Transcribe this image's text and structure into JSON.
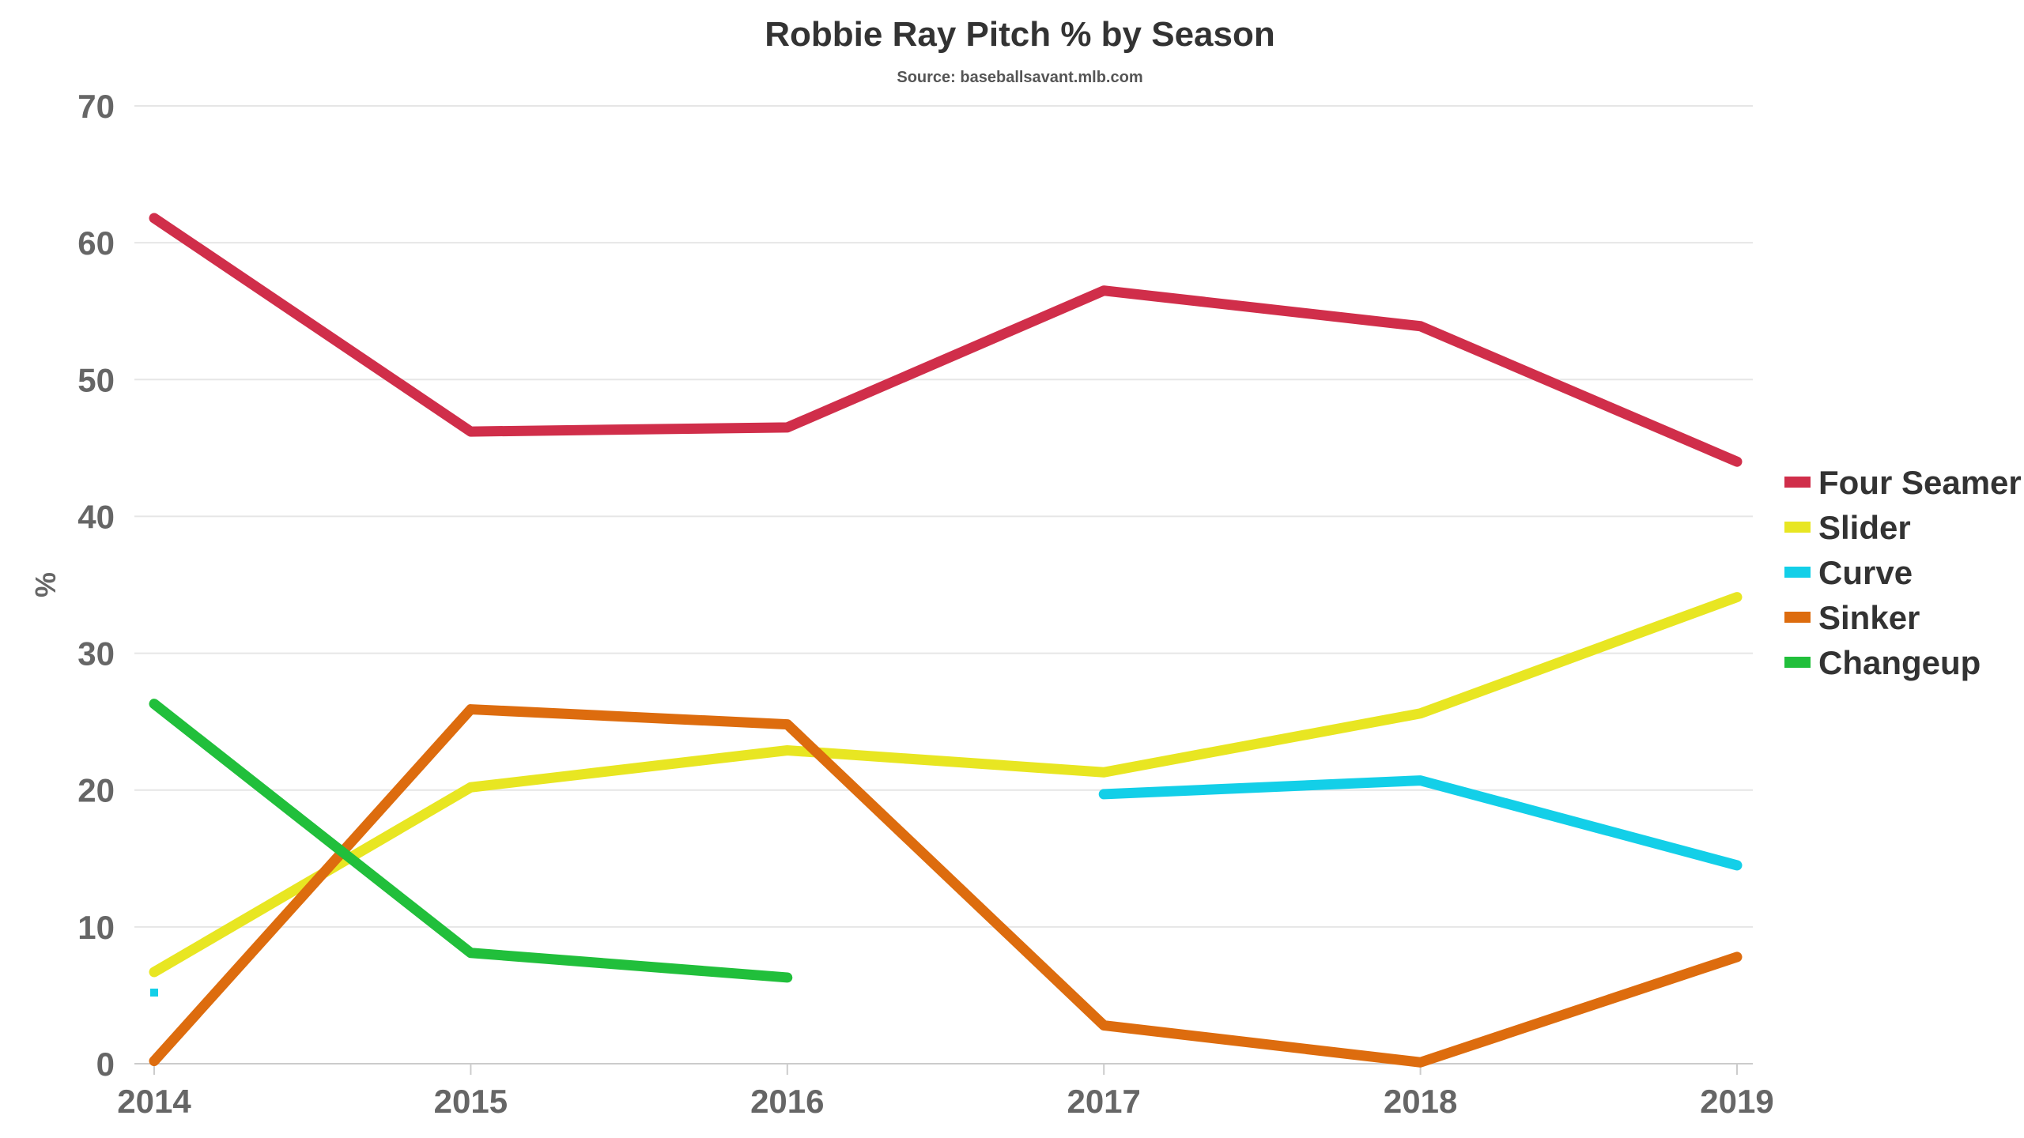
{
  "chart_data": {
    "type": "line",
    "title": "Robbie Ray Pitch % by Season",
    "subtitle": "Source: baseballsavant.mlb.com",
    "xlabel": "",
    "ylabel": "%",
    "x": [
      "2014",
      "2015",
      "2016",
      "2017",
      "2018",
      "2019"
    ],
    "ylim": [
      0,
      70
    ],
    "yticks": [
      0,
      10,
      20,
      30,
      40,
      50,
      60,
      70
    ],
    "grid": true,
    "legend_position": "right",
    "series": [
      {
        "name": "Four Seamer",
        "color": "#d02e4a",
        "values": [
          61.8,
          46.2,
          46.5,
          56.5,
          53.9,
          44.0
        ]
      },
      {
        "name": "Slider",
        "color": "#e8e622",
        "values": [
          6.7,
          20.2,
          22.9,
          21.3,
          25.6,
          34.1
        ]
      },
      {
        "name": "Curve",
        "color": "#13cfe8",
        "values": [
          5.2,
          null,
          null,
          19.7,
          20.7,
          14.5
        ]
      },
      {
        "name": "Sinker",
        "color": "#dd6c0e",
        "values": [
          0.2,
          25.9,
          24.8,
          2.8,
          0.1,
          7.8
        ]
      },
      {
        "name": "Changeup",
        "color": "#21bf3b",
        "values": [
          26.3,
          8.1,
          6.3,
          null,
          null,
          null
        ]
      }
    ]
  }
}
